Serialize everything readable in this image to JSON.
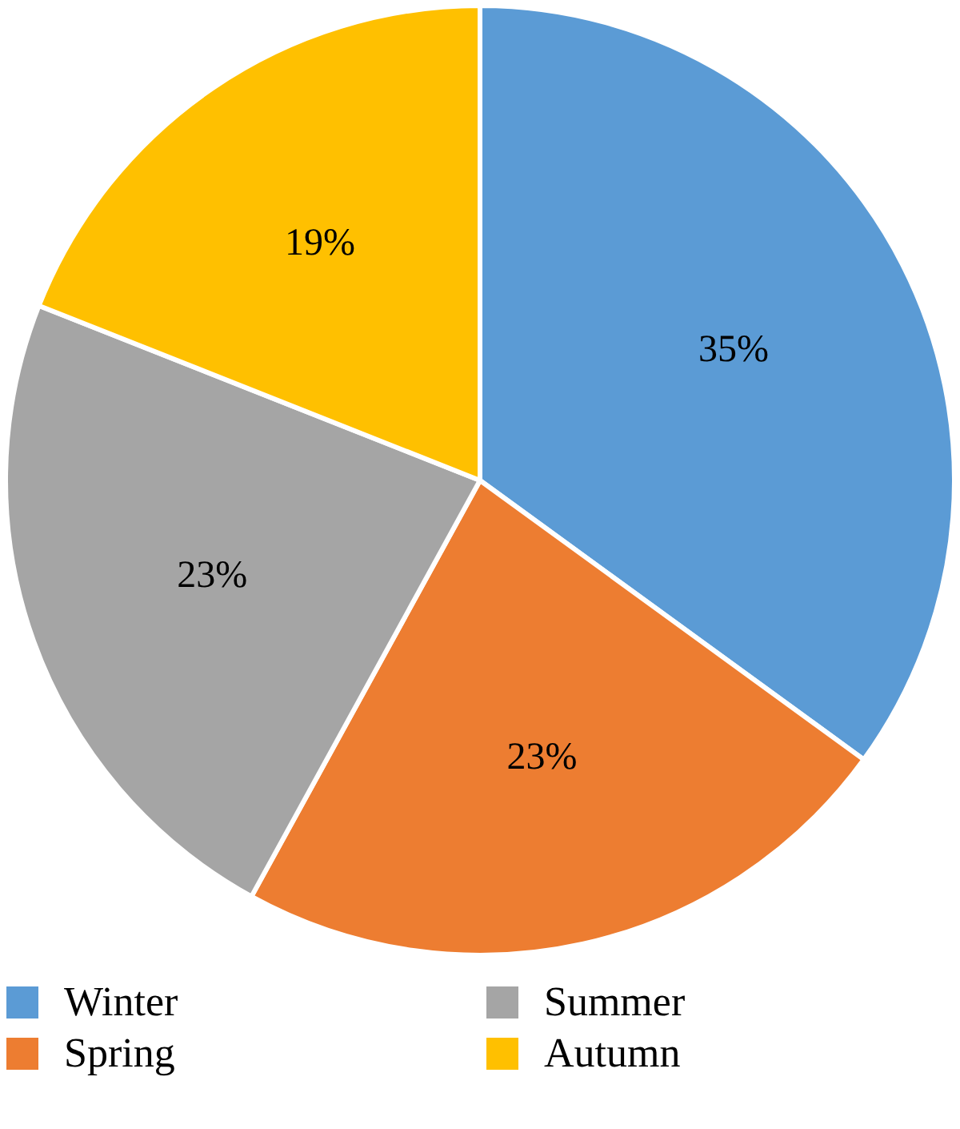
{
  "chart_data": {
    "type": "pie",
    "categories": [
      "Winter",
      "Spring",
      "Summer",
      "Autumn"
    ],
    "values": [
      35,
      23,
      23,
      19
    ],
    "value_labels": [
      "35%",
      "23%",
      "23%",
      "19%"
    ],
    "colors": [
      "#5b9bd5",
      "#ed7d31",
      "#a5a5a5",
      "#ffc000"
    ],
    "legend": "bottom"
  }
}
